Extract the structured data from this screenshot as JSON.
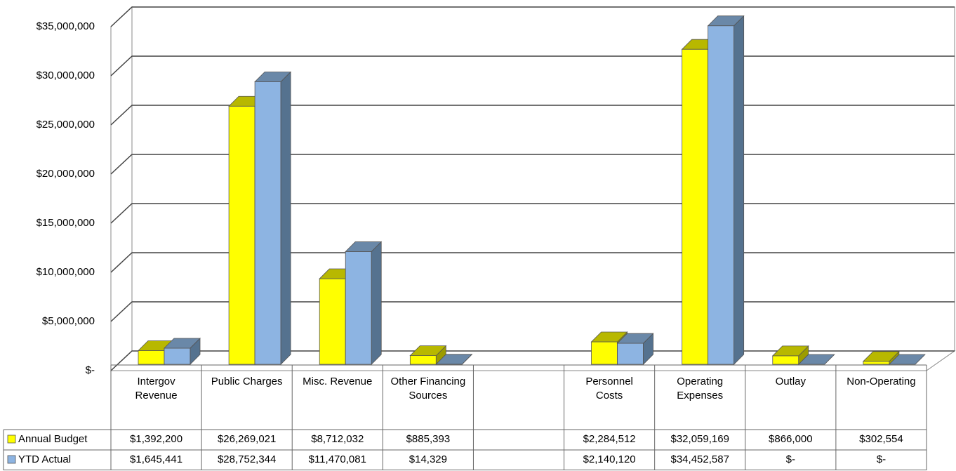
{
  "chart_data": {
    "type": "bar3d",
    "categories": [
      "Intergov Revenue",
      "Public Charges",
      "Misc. Revenue",
      "Other Financing Sources",
      null,
      "Personnel Costs",
      "Operating Expenses",
      "Outlay",
      "Non-Operating"
    ],
    "series": [
      {
        "name": "Annual Budget",
        "color": "#ffff00",
        "values": [
          1392200,
          26269021,
          8712032,
          885393,
          null,
          2284512,
          32059169,
          866000,
          302554
        ],
        "value_labels": [
          "$1,392,200",
          "$26,269,021",
          "$8,712,032",
          "$885,393",
          null,
          "$2,284,512",
          "$32,059,169",
          "$866,000",
          "$302,554"
        ]
      },
      {
        "name": "YTD Actual",
        "color": "#8db4e2",
        "values": [
          1645441,
          28752344,
          11470081,
          14329,
          null,
          2140120,
          34452587,
          0,
          0
        ],
        "value_labels": [
          "$1,645,441",
          "$28,752,344",
          "$11,470,081",
          "$14,329",
          null,
          "$2,140,120",
          "$34,452,587",
          "$-",
          "$-"
        ]
      }
    ],
    "ylim": [
      0,
      35000000
    ],
    "yticks": [
      {
        "value": 0,
        "label": "$-"
      },
      {
        "value": 5000000,
        "label": "$5,000,000"
      },
      {
        "value": 10000000,
        "label": "$10,000,000"
      },
      {
        "value": 15000000,
        "label": "$15,000,000"
      },
      {
        "value": 20000000,
        "label": "$20,000,000"
      },
      {
        "value": 25000000,
        "label": "$25,000,000"
      },
      {
        "value": 30000000,
        "label": "$30,000,000"
      },
      {
        "value": 35000000,
        "label": "$35,000,000"
      }
    ],
    "grid": true
  }
}
